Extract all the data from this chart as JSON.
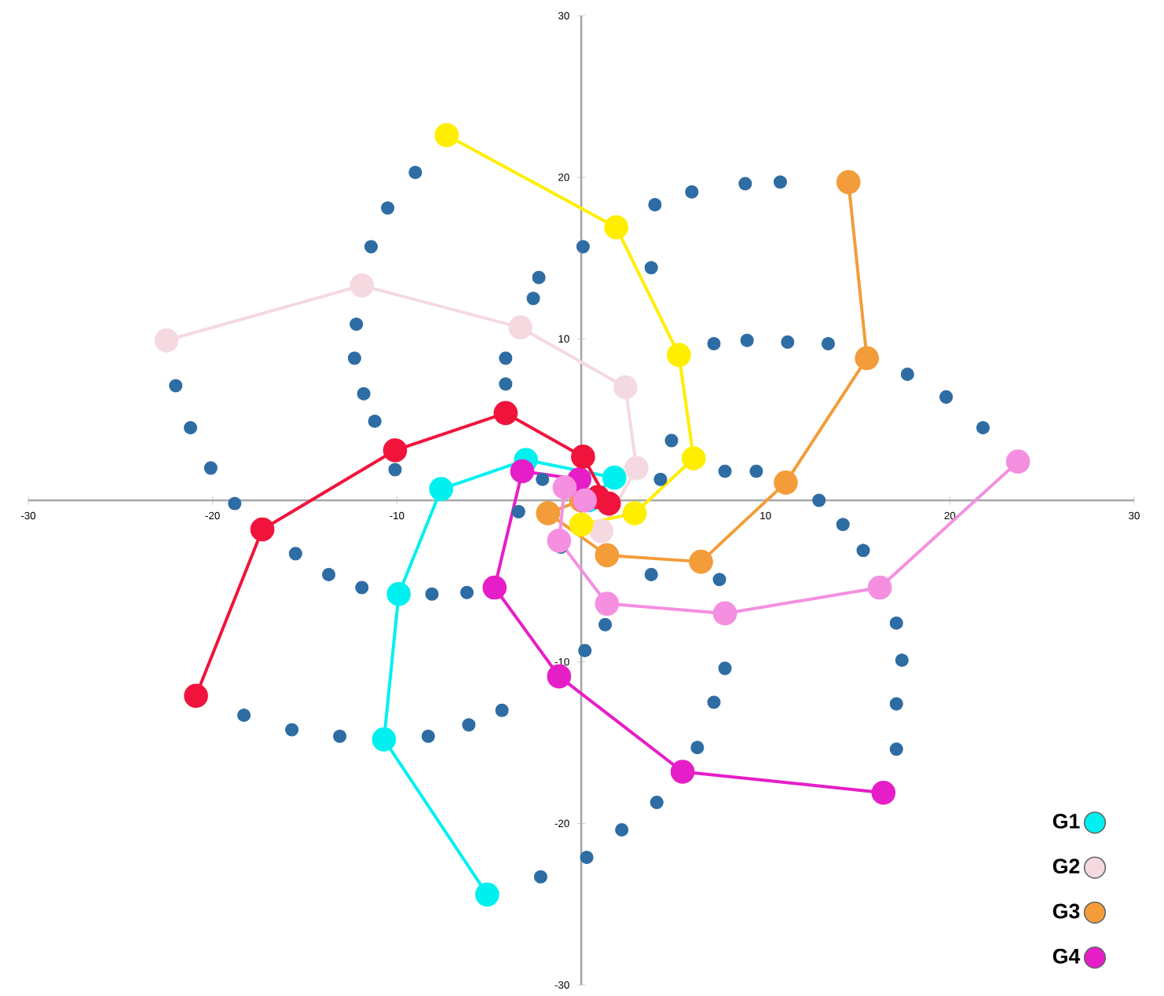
{
  "chart_data": {
    "type": "line",
    "marker": "circle",
    "legend": "bottom right",
    "xlim": [
      -30,
      30
    ],
    "ylim": [
      -30,
      30
    ],
    "xticks": [
      -30,
      -20,
      -10,
      10,
      20,
      30
    ],
    "yticks": [
      -30,
      -20,
      -10,
      10,
      20,
      30
    ],
    "series": [
      {
        "type": "scatter",
        "color": "#2e6ca4",
        "x": [
          -9.0,
          -10.5,
          -11.4,
          -12.2,
          -12.3,
          -11.8,
          -11.2,
          -10.1,
          -22.0,
          -21.2,
          -20.1,
          -18.8,
          -15.5,
          -13.7,
          -11.9,
          -8.1,
          -6.2,
          -18.3,
          -15.7,
          -13.1,
          -8.3,
          -6.1,
          -4.3,
          0.3,
          -2.2,
          2.2,
          4.1,
          6.3,
          7.2,
          7.8,
          0.2,
          1.3,
          17.1,
          17.1,
          17.4,
          17.1,
          15.3,
          14.2,
          12.9,
          9.5,
          7.8,
          21.8,
          19.8,
          17.7,
          13.4,
          11.2,
          9.0,
          7.2,
          10.8,
          8.9,
          6.0,
          4.0,
          3.8,
          0.1,
          -2.3,
          -2.6,
          -4.1,
          -4.1,
          -2.1,
          -3.4,
          -1.1,
          3.8,
          4.9,
          4.3,
          7.5
        ],
        "values": [
          20.3,
          18.1,
          15.7,
          10.9,
          8.8,
          6.6,
          4.9,
          1.9,
          7.1,
          4.5,
          2.0,
          -0.2,
          -3.3,
          -4.6,
          -5.4,
          -5.8,
          -5.7,
          -13.3,
          -14.2,
          -14.6,
          -14.6,
          -13.9,
          -13.0,
          -22.1,
          -23.3,
          -20.4,
          -18.7,
          -15.3,
          -12.5,
          -10.4,
          -9.3,
          -7.7,
          -15.4,
          -12.6,
          -9.9,
          -7.6,
          -3.1,
          -1.5,
          0.0,
          1.8,
          1.8,
          4.5,
          6.4,
          7.8,
          9.7,
          9.8,
          9.9,
          9.7,
          19.7,
          19.6,
          19.1,
          18.3,
          14.4,
          15.7,
          13.8,
          12.5,
          8.8,
          7.2,
          1.3,
          -0.7,
          -2.9,
          -4.6,
          3.7,
          1.3,
          -4.9
        ]
      },
      {
        "name": "G1",
        "color": "#00f0f0",
        "x": [
          -5.1,
          -10.7,
          -9.9,
          -7.6,
          -3.0,
          1.8,
          0.4
        ],
        "values": [
          -24.4,
          -14.8,
          -5.8,
          0.7,
          2.5,
          1.4,
          0.0
        ]
      },
      {
        "name": "G2",
        "color": "#f5d9e0",
        "x": [
          -22.5,
          -11.9,
          -3.3,
          2.4,
          3.0,
          1.1
        ],
        "values": [
          9.9,
          13.3,
          10.7,
          7.0,
          2.0,
          -1.9
        ]
      },
      {
        "name": "G3",
        "color": "#f39c3a",
        "x": [
          14.5,
          15.5,
          11.1,
          6.5,
          1.4,
          -1.8,
          0.0
        ],
        "values": [
          19.7,
          8.8,
          1.1,
          -3.8,
          -3.4,
          -0.8,
          0.0
        ]
      },
      {
        "name": "G4",
        "color": "#e61ec8",
        "x": [
          16.4,
          5.5,
          -1.2,
          -4.7,
          -3.2,
          -0.1,
          0.2
        ],
        "values": [
          -18.1,
          -16.8,
          -10.9,
          -5.4,
          1.8,
          1.3,
          0.0
        ]
      },
      {
        "color": "#f0143c",
        "x": [
          -20.9,
          -17.3,
          -10.1,
          -4.1,
          0.1,
          1.5,
          0.9
        ],
        "values": [
          -12.1,
          -1.8,
          3.1,
          5.4,
          2.7,
          -0.2,
          0.2
        ]
      },
      {
        "color": "#ffee00",
        "x": [
          -7.3,
          1.9,
          5.3,
          6.1,
          2.9,
          0.0
        ],
        "values": [
          22.6,
          16.9,
          9.0,
          2.6,
          -0.8,
          -1.5
        ]
      },
      {
        "color": "#f58fe0",
        "x": [
          23.7,
          16.2,
          7.8,
          1.4,
          -1.2,
          -0.9,
          0.2
        ],
        "values": [
          2.4,
          -5.4,
          -7.0,
          -6.4,
          -2.5,
          0.8,
          0.0
        ]
      }
    ]
  }
}
